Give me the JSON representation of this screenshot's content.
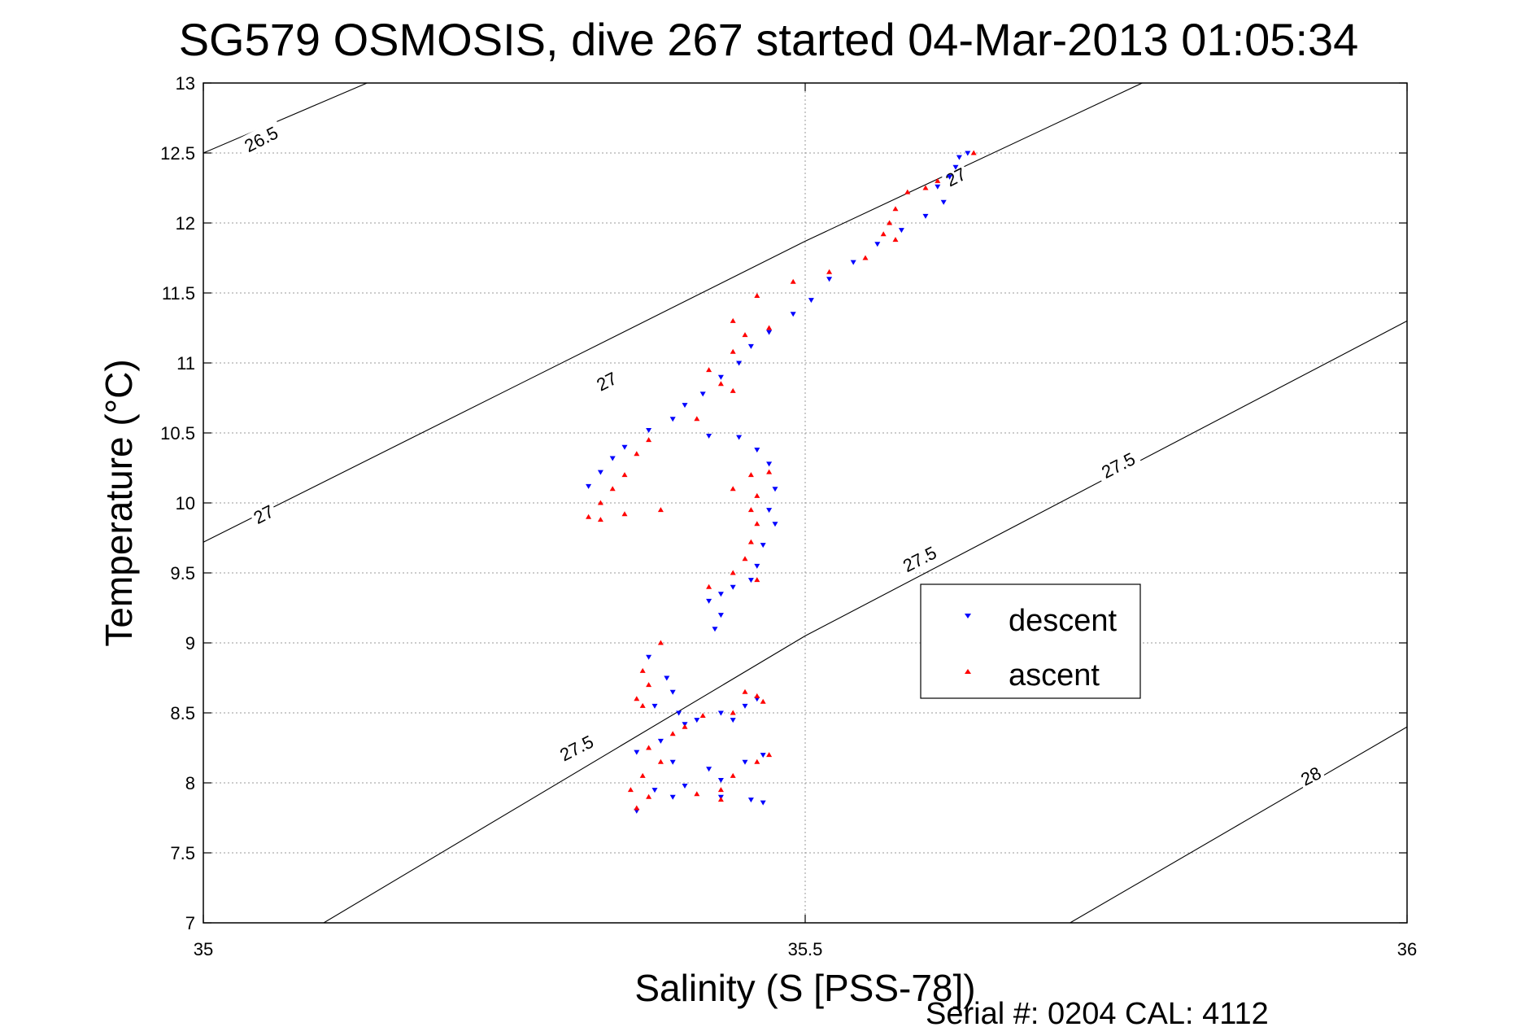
{
  "chart_data": {
    "type": "scatter",
    "title": "SG579 OSMOSIS, dive 267 started 04-Mar-2013 01:05:34",
    "xlabel": "Salinity (S [PSS-78])",
    "ylabel": "Temperature (°C)",
    "footer": "Serial #: 0204  CAL: 4112",
    "xlim": [
      35,
      36
    ],
    "ylim": [
      7,
      13
    ],
    "xticks": [
      35,
      35.5,
      36
    ],
    "xtick_labels": [
      "35",
      "35.5",
      "36"
    ],
    "yticks": [
      7,
      7.5,
      8,
      8.5,
      9,
      9.5,
      10,
      10.5,
      11,
      11.5,
      12,
      12.5,
      13
    ],
    "ytick_labels": [
      "7",
      "7.5",
      "8",
      "8.5",
      "9",
      "9.5",
      "10",
      "10.5",
      "11",
      "11.5",
      "12",
      "12.5",
      "13"
    ],
    "grid": true,
    "legend_position": "right-middle",
    "density_contours": [
      {
        "label": "26.5",
        "points": [
          [
            35.0,
            12.5
          ],
          [
            35.136,
            13.0
          ]
        ]
      },
      {
        "label": "27",
        "points": [
          [
            35.0,
            9.72
          ],
          [
            35.5,
            11.87
          ],
          [
            35.78,
            13.0
          ]
        ]
      },
      {
        "label": "27.5",
        "points": [
          [
            35.1,
            7.0
          ],
          [
            35.5,
            9.05
          ],
          [
            36.0,
            11.3
          ]
        ]
      },
      {
        "label": "28",
        "points": [
          [
            35.72,
            7.0
          ],
          [
            36.0,
            8.4
          ]
        ]
      }
    ],
    "contour_labels": [
      {
        "text": "26.5",
        "x": 35.048,
        "y": 12.6
      },
      {
        "text": "27",
        "x": 35.625,
        "y": 12.33
      },
      {
        "text": "27",
        "x": 35.335,
        "y": 10.87
      },
      {
        "text": "27",
        "x": 35.05,
        "y": 9.92
      },
      {
        "text": "27.5",
        "x": 35.76,
        "y": 10.27
      },
      {
        "text": "27.5",
        "x": 35.595,
        "y": 9.6
      },
      {
        "text": "27.5",
        "x": 35.31,
        "y": 8.25
      },
      {
        "text": "28",
        "x": 35.92,
        "y": 8.05
      }
    ],
    "series": [
      {
        "name": "descent",
        "color": "#0000ff",
        "marker": "triangle-down",
        "points": [
          [
            35.635,
            12.5
          ],
          [
            35.628,
            12.47
          ],
          [
            35.625,
            12.4
          ],
          [
            35.62,
            12.33
          ],
          [
            35.61,
            12.26
          ],
          [
            35.615,
            12.15
          ],
          [
            35.6,
            12.05
          ],
          [
            35.58,
            11.95
          ],
          [
            35.56,
            11.85
          ],
          [
            35.54,
            11.72
          ],
          [
            35.52,
            11.6
          ],
          [
            35.505,
            11.45
          ],
          [
            35.49,
            11.35
          ],
          [
            35.47,
            11.22
          ],
          [
            35.455,
            11.12
          ],
          [
            35.445,
            11.0
          ],
          [
            35.43,
            10.9
          ],
          [
            35.415,
            10.78
          ],
          [
            35.4,
            10.7
          ],
          [
            35.39,
            10.6
          ],
          [
            35.37,
            10.52
          ],
          [
            35.35,
            10.4
          ],
          [
            35.34,
            10.32
          ],
          [
            35.33,
            10.22
          ],
          [
            35.32,
            10.12
          ],
          [
            35.42,
            10.48
          ],
          [
            35.445,
            10.47
          ],
          [
            35.46,
            10.38
          ],
          [
            35.47,
            10.28
          ],
          [
            35.475,
            10.1
          ],
          [
            35.47,
            9.95
          ],
          [
            35.475,
            9.85
          ],
          [
            35.465,
            9.7
          ],
          [
            35.46,
            9.55
          ],
          [
            35.455,
            9.45
          ],
          [
            35.44,
            9.4
          ],
          [
            35.43,
            9.35
          ],
          [
            35.42,
            9.3
          ],
          [
            35.43,
            9.2
          ],
          [
            35.425,
            9.1
          ],
          [
            35.37,
            8.9
          ],
          [
            35.385,
            8.75
          ],
          [
            35.39,
            8.65
          ],
          [
            35.375,
            8.55
          ],
          [
            35.395,
            8.5
          ],
          [
            35.41,
            8.45
          ],
          [
            35.43,
            8.5
          ],
          [
            35.45,
            8.55
          ],
          [
            35.46,
            8.6
          ],
          [
            35.44,
            8.45
          ],
          [
            35.4,
            8.42
          ],
          [
            35.38,
            8.3
          ],
          [
            35.36,
            8.22
          ],
          [
            35.39,
            8.15
          ],
          [
            35.42,
            8.1
          ],
          [
            35.45,
            8.15
          ],
          [
            35.465,
            8.2
          ],
          [
            35.43,
            8.02
          ],
          [
            35.4,
            7.98
          ],
          [
            35.375,
            7.95
          ],
          [
            35.39,
            7.9
          ],
          [
            35.43,
            7.9
          ],
          [
            35.455,
            7.88
          ],
          [
            35.465,
            7.86
          ],
          [
            35.36,
            7.8
          ]
        ]
      },
      {
        "name": "ascent",
        "color": "#ff0000",
        "marker": "triangle-up",
        "points": [
          [
            35.64,
            12.5
          ],
          [
            35.61,
            12.3
          ],
          [
            35.6,
            12.25
          ],
          [
            35.585,
            12.22
          ],
          [
            35.575,
            12.1
          ],
          [
            35.57,
            12.0
          ],
          [
            35.565,
            11.92
          ],
          [
            35.575,
            11.88
          ],
          [
            35.55,
            11.75
          ],
          [
            35.52,
            11.65
          ],
          [
            35.49,
            11.58
          ],
          [
            35.46,
            11.48
          ],
          [
            35.44,
            11.3
          ],
          [
            35.45,
            11.2
          ],
          [
            35.47,
            11.25
          ],
          [
            35.44,
            11.08
          ],
          [
            35.42,
            10.95
          ],
          [
            35.43,
            10.85
          ],
          [
            35.44,
            10.8
          ],
          [
            35.41,
            10.6
          ],
          [
            35.37,
            10.45
          ],
          [
            35.36,
            10.35
          ],
          [
            35.35,
            10.2
          ],
          [
            35.34,
            10.1
          ],
          [
            35.33,
            10.0
          ],
          [
            35.32,
            9.9
          ],
          [
            35.35,
            9.92
          ],
          [
            35.38,
            9.95
          ],
          [
            35.33,
            9.88
          ],
          [
            35.44,
            10.1
          ],
          [
            35.455,
            10.2
          ],
          [
            35.47,
            10.22
          ],
          [
            35.46,
            10.05
          ],
          [
            35.455,
            9.95
          ],
          [
            35.46,
            9.85
          ],
          [
            35.455,
            9.72
          ],
          [
            35.45,
            9.6
          ],
          [
            35.44,
            9.5
          ],
          [
            35.46,
            9.45
          ],
          [
            35.42,
            9.4
          ],
          [
            35.38,
            9.0
          ],
          [
            35.365,
            8.8
          ],
          [
            35.37,
            8.7
          ],
          [
            35.36,
            8.6
          ],
          [
            35.365,
            8.55
          ],
          [
            35.45,
            8.65
          ],
          [
            35.465,
            8.58
          ],
          [
            35.46,
            8.62
          ],
          [
            35.44,
            8.5
          ],
          [
            35.415,
            8.48
          ],
          [
            35.4,
            8.4
          ],
          [
            35.39,
            8.35
          ],
          [
            35.37,
            8.25
          ],
          [
            35.38,
            8.15
          ],
          [
            35.365,
            8.05
          ],
          [
            35.355,
            7.95
          ],
          [
            35.37,
            7.9
          ],
          [
            35.46,
            8.15
          ],
          [
            35.47,
            8.2
          ],
          [
            35.44,
            8.05
          ],
          [
            35.43,
            7.95
          ],
          [
            35.41,
            7.92
          ],
          [
            35.43,
            7.88
          ],
          [
            35.36,
            7.82
          ]
        ]
      }
    ]
  }
}
